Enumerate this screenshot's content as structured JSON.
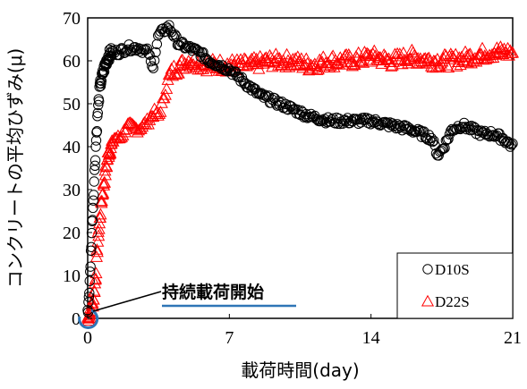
{
  "chart_data": {
    "type": "scatter",
    "xlabel": "載荷時間(day)",
    "ylabel": "コンクリートの平均ひずみ(μ)",
    "xlim": [
      0,
      21
    ],
    "ylim": [
      0,
      70
    ],
    "xticks": [
      0,
      7,
      14,
      21
    ],
    "yticks": [
      0,
      10,
      20,
      30,
      40,
      50,
      60,
      70
    ],
    "grid": false,
    "legend_position": "bottom-right",
    "annotation": "持続載荷開始",
    "series": [
      {
        "name": "D10S",
        "marker": "circle",
        "color": "#000000",
        "x": [
          0,
          0.1,
          0.2,
          0.3,
          0.4,
          0.5,
          0.6,
          0.8,
          1.0,
          1.2,
          1.5,
          2.0,
          2.5,
          3.0,
          3.2,
          3.5,
          4.0,
          4.5,
          5.0,
          5.5,
          6.0,
          6.5,
          7.0,
          7.5,
          8.0,
          8.5,
          9.0,
          9.5,
          10.0,
          11.0,
          12.0,
          13.0,
          14.0,
          15.0,
          16.0,
          16.5,
          17.0,
          17.3,
          17.6,
          18.0,
          18.5,
          19.0,
          19.5,
          20.0,
          20.5,
          21.0
        ],
        "y": [
          1,
          8,
          20,
          30,
          40,
          48,
          54,
          58,
          61,
          62,
          62,
          63,
          63,
          62,
          58,
          66,
          68,
          64,
          63,
          62,
          60,
          59,
          58,
          56,
          54,
          52,
          51,
          50,
          49,
          47,
          46,
          46,
          46,
          45,
          44,
          43,
          42,
          38,
          40,
          44,
          45,
          44,
          43,
          43,
          42,
          40
        ]
      },
      {
        "name": "D22S",
        "marker": "triangle",
        "color": "#ff0000",
        "x": [
          0,
          0.1,
          0.2,
          0.3,
          0.4,
          0.5,
          0.7,
          1.0,
          1.3,
          1.6,
          2.0,
          2.5,
          3.0,
          3.3,
          3.5,
          3.8,
          4.0,
          4.3,
          5.0,
          6.0,
          7.0,
          8.0,
          9.0,
          10.0,
          11.0,
          12.0,
          13.0,
          14.0,
          15.0,
          16.0,
          17.0,
          18.0,
          19.0,
          20.0,
          21.0
        ],
        "y": [
          0,
          1,
          2,
          5,
          10,
          18,
          28,
          38,
          42,
          42,
          45,
          44,
          46,
          48,
          47,
          52,
          56,
          58,
          60,
          59,
          59,
          59,
          60,
          60,
          59,
          60,
          60,
          61,
          60,
          61,
          60,
          60,
          61,
          62,
          62
        ]
      }
    ]
  }
}
